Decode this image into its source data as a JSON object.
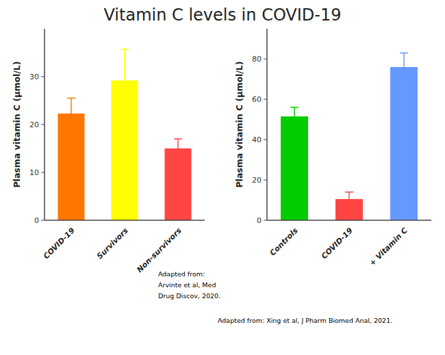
{
  "chart_data": [
    {
      "type": "bar",
      "title": "Vitamin C levels in COVID-19",
      "categories": [
        "COVID-19",
        "Survivors",
        "Non-survivors"
      ],
      "values": [
        22.3,
        29.2,
        15.0
      ],
      "errors": [
        3.2,
        6.5,
        2.0
      ],
      "colors": [
        "#FF7700",
        "#FFFF00",
        "#FF4444"
      ],
      "y_label": "Plasma vitamin C (μmol/L)",
      "ylim": [
        0,
        40
      ],
      "yticks": [
        0,
        10,
        20,
        30
      ],
      "annotations": [
        "Adapted from:",
        "Arvinte et al, Med",
        "Drug Discov, 2020."
      ]
    },
    {
      "type": "bar",
      "categories": [
        "Controls",
        "COVID-19",
        "+ Vitamin C"
      ],
      "values": [
        51.5,
        10.5,
        76.0
      ],
      "errors": [
        4.5,
        3.5,
        7.0
      ],
      "colors": [
        "#00CC00",
        "#FF4444",
        "#6699FF"
      ],
      "y_label": "Plasma vitamin C (μmol/L)",
      "ylim": [
        0,
        95
      ],
      "yticks": [
        0,
        20,
        40,
        60,
        80
      ],
      "annotations": [
        "Adapted from: Xing et al, J Pharm Biomed Anal, 2021."
      ]
    }
  ]
}
